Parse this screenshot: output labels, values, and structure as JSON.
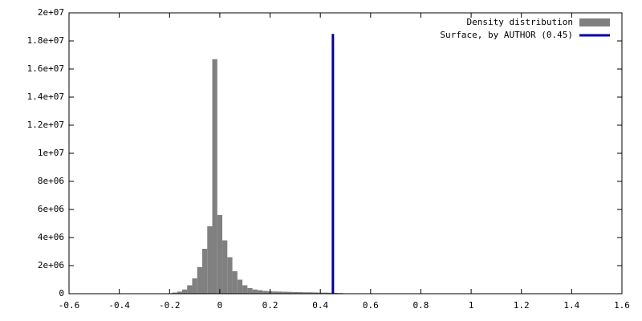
{
  "chart_data": {
    "type": "histogram",
    "bins": [
      -0.21,
      -0.19,
      -0.17,
      -0.15,
      -0.13,
      -0.11,
      -0.09,
      -0.07,
      -0.05,
      -0.03,
      -0.01,
      0.01,
      0.03,
      0.05,
      0.07,
      0.09,
      0.11,
      0.13,
      0.15,
      0.17,
      0.19,
      0.21,
      0.23,
      0.25,
      0.27,
      0.29,
      0.31,
      0.33,
      0.35,
      0.37,
      0.39,
      0.41,
      0.43,
      0.45,
      0.47,
      0.49
    ],
    "series": [
      {
        "name": "Density distribution",
        "color": "#808080",
        "values": [
          30000,
          80000,
          150000,
          300000,
          600000,
          1100000,
          1900000,
          3200000,
          4800000,
          16700000,
          5600000,
          3800000,
          2600000,
          1600000,
          1000000,
          600000,
          400000,
          300000,
          250000,
          200000,
          180000,
          160000,
          150000,
          140000,
          130000,
          120000,
          110000,
          100000,
          100000,
          90000,
          80000,
          80000,
          70000,
          60000,
          50000
        ]
      }
    ],
    "lines": [
      {
        "name": "Surface, by AUTHOR (0.45)",
        "color": "#0000a0",
        "x": [
          0.45,
          0.45
        ],
        "values": [
          0,
          18500000
        ]
      }
    ],
    "xlim": [
      -0.6,
      1.6
    ],
    "xticks": [
      -0.6,
      -0.4,
      -0.2,
      0,
      0.2,
      0.4,
      0.6,
      0.8,
      1,
      1.2,
      1.4,
      1.6
    ],
    "ylim": [
      0,
      20000000
    ],
    "yticks": [
      0,
      {
        "value": 2000000,
        "label": "2e+06"
      },
      {
        "value": 4000000,
        "label": "4e+06"
      },
      {
        "value": 6000000,
        "label": "6e+06"
      },
      {
        "value": 8000000,
        "label": "8e+06"
      },
      {
        "value": 10000000,
        "label": "1e+07"
      },
      {
        "value": 12000000,
        "label": "1.2e+07"
      },
      {
        "value": 14000000,
        "label": "1.4e+07"
      },
      {
        "value": 16000000,
        "label": "1.6e+07"
      },
      {
        "value": 18000000,
        "label": "1.8e+07"
      },
      {
        "value": 20000000,
        "label": "2e+07"
      }
    ],
    "grid": false,
    "legend": "top-right"
  }
}
